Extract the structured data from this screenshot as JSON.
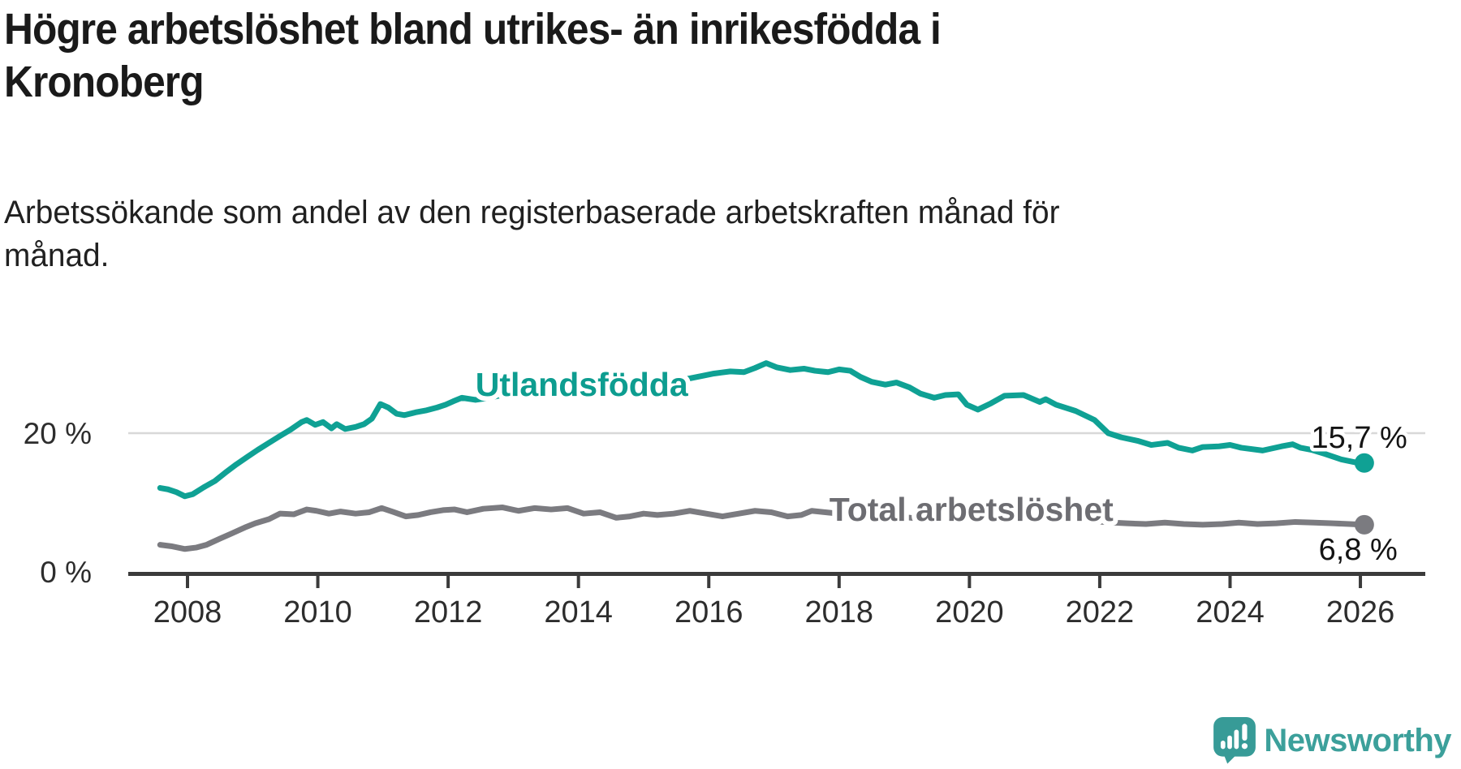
{
  "header": {
    "title_line1": "Högre arbetslöshet bland utrikes- än inrikesfödda i",
    "title_line2": "Kronoberg",
    "subtitle_line1": "Arbetssökande som andel av den registerbaserade arbetskraften månad för",
    "subtitle_line2": "månad."
  },
  "chart_data": {
    "type": "line",
    "title": "Högre arbetslöshet bland utrikes- än inrikesfödda i Kronoberg",
    "subtitle": "Arbetssökande som andel av den registerbaserade arbetskraften månad för månad.",
    "x_axis": {
      "tick_labels": [
        "2008",
        "2010",
        "2012",
        "2014",
        "2016",
        "2018",
        "2020",
        "2022",
        "2024",
        "2026"
      ]
    },
    "y_axis": {
      "ticks": [
        {
          "value": 20,
          "label": "20 %"
        },
        {
          "value": 0,
          "label": "0 %"
        }
      ],
      "range": [
        0,
        32
      ]
    },
    "grid_color": "#D8D8D8",
    "axis_color": "#3B3B3B",
    "tick_text_color": "#2D2D2D",
    "value_label_color": "#141414",
    "series": [
      {
        "name": "Utlandsfödda",
        "color": "#0FA194",
        "label_color": "#0D9D90",
        "end_label": "15,7 %",
        "end_value": 15.7,
        "label_anchor": {
          "year": 2014.05,
          "value": 27.0
        },
        "points": [
          [
            2007.58,
            12.1
          ],
          [
            2007.7,
            11.9
          ],
          [
            2007.83,
            11.5
          ],
          [
            2007.96,
            10.9
          ],
          [
            2008.08,
            11.2
          ],
          [
            2008.25,
            12.2
          ],
          [
            2008.42,
            13.1
          ],
          [
            2008.58,
            14.3
          ],
          [
            2008.75,
            15.5
          ],
          [
            2008.92,
            16.6
          ],
          [
            2009.08,
            17.6
          ],
          [
            2009.25,
            18.6
          ],
          [
            2009.42,
            19.6
          ],
          [
            2009.58,
            20.5
          ],
          [
            2009.75,
            21.6
          ],
          [
            2009.83,
            21.9
          ],
          [
            2009.96,
            21.2
          ],
          [
            2010.08,
            21.6
          ],
          [
            2010.21,
            20.7
          ],
          [
            2010.29,
            21.3
          ],
          [
            2010.42,
            20.6
          ],
          [
            2010.58,
            20.9
          ],
          [
            2010.71,
            21.3
          ],
          [
            2010.83,
            22.1
          ],
          [
            2010.96,
            24.2
          ],
          [
            2011.08,
            23.7
          ],
          [
            2011.21,
            22.8
          ],
          [
            2011.33,
            22.6
          ],
          [
            2011.5,
            23.0
          ],
          [
            2011.67,
            23.3
          ],
          [
            2011.83,
            23.7
          ],
          [
            2011.96,
            24.1
          ],
          [
            2012.08,
            24.6
          ],
          [
            2012.21,
            25.1
          ],
          [
            2012.42,
            24.8
          ],
          [
            2012.63,
            25.1
          ],
          [
            2012.83,
            25.5
          ],
          [
            2013.0,
            25.8
          ],
          [
            2013.21,
            26.2
          ],
          [
            2013.42,
            25.9
          ],
          [
            2013.63,
            26.1
          ],
          [
            2013.83,
            26.5
          ],
          [
            2014.04,
            26.8
          ],
          [
            2014.25,
            27.1
          ],
          [
            2014.46,
            26.8
          ],
          [
            2014.67,
            27.0
          ],
          [
            2014.88,
            27.3
          ],
          [
            2015.08,
            27.7
          ],
          [
            2015.29,
            27.9
          ],
          [
            2015.5,
            27.6
          ],
          [
            2015.71,
            27.9
          ],
          [
            2015.92,
            28.3
          ],
          [
            2016.08,
            28.6
          ],
          [
            2016.33,
            28.9
          ],
          [
            2016.54,
            28.8
          ],
          [
            2016.71,
            29.4
          ],
          [
            2016.88,
            30.1
          ],
          [
            2017.04,
            29.5
          ],
          [
            2017.25,
            29.1
          ],
          [
            2017.46,
            29.3
          ],
          [
            2017.63,
            29.0
          ],
          [
            2017.83,
            28.8
          ],
          [
            2018.0,
            29.2
          ],
          [
            2018.17,
            29.0
          ],
          [
            2018.33,
            28.1
          ],
          [
            2018.5,
            27.4
          ],
          [
            2018.71,
            27.0
          ],
          [
            2018.88,
            27.3
          ],
          [
            2019.08,
            26.6
          ],
          [
            2019.25,
            25.7
          ],
          [
            2019.46,
            25.1
          ],
          [
            2019.63,
            25.5
          ],
          [
            2019.83,
            25.6
          ],
          [
            2019.96,
            24.1
          ],
          [
            2020.13,
            23.4
          ],
          [
            2020.33,
            24.3
          ],
          [
            2020.54,
            25.4
          ],
          [
            2020.83,
            25.5
          ],
          [
            2021.08,
            24.5
          ],
          [
            2021.17,
            24.9
          ],
          [
            2021.33,
            24.1
          ],
          [
            2021.63,
            23.2
          ],
          [
            2021.92,
            21.9
          ],
          [
            2022.13,
            20.0
          ],
          [
            2022.33,
            19.4
          ],
          [
            2022.58,
            18.9
          ],
          [
            2022.79,
            18.3
          ],
          [
            2023.04,
            18.6
          ],
          [
            2023.21,
            17.9
          ],
          [
            2023.42,
            17.5
          ],
          [
            2023.58,
            18.0
          ],
          [
            2023.83,
            18.1
          ],
          [
            2024.0,
            18.3
          ],
          [
            2024.17,
            17.9
          ],
          [
            2024.5,
            17.5
          ],
          [
            2024.79,
            18.1
          ],
          [
            2024.96,
            18.4
          ],
          [
            2025.08,
            17.9
          ],
          [
            2025.25,
            17.6
          ],
          [
            2025.46,
            17.0
          ],
          [
            2025.71,
            16.2
          ],
          [
            2025.92,
            15.8
          ],
          [
            2026.06,
            15.7
          ]
        ]
      },
      {
        "name": "Total arbetslöshet",
        "color": "#7B7B80",
        "label_color": "#6D6D72",
        "end_label": "6,8 %",
        "end_value": 6.8,
        "label_anchor": {
          "year": 2020.03,
          "value": 9.0
        },
        "points": [
          [
            2007.58,
            3.9
          ],
          [
            2007.75,
            3.7
          ],
          [
            2007.96,
            3.3
          ],
          [
            2008.13,
            3.5
          ],
          [
            2008.29,
            3.9
          ],
          [
            2008.5,
            4.8
          ],
          [
            2008.67,
            5.5
          ],
          [
            2008.88,
            6.4
          ],
          [
            2009.04,
            7.0
          ],
          [
            2009.25,
            7.6
          ],
          [
            2009.42,
            8.4
          ],
          [
            2009.63,
            8.3
          ],
          [
            2009.83,
            9.0
          ],
          [
            2009.98,
            8.8
          ],
          [
            2010.17,
            8.4
          ],
          [
            2010.35,
            8.7
          ],
          [
            2010.58,
            8.4
          ],
          [
            2010.79,
            8.6
          ],
          [
            2010.98,
            9.2
          ],
          [
            2011.17,
            8.6
          ],
          [
            2011.35,
            8.0
          ],
          [
            2011.54,
            8.2
          ],
          [
            2011.73,
            8.6
          ],
          [
            2011.92,
            8.9
          ],
          [
            2012.1,
            9.0
          ],
          [
            2012.29,
            8.6
          ],
          [
            2012.54,
            9.1
          ],
          [
            2012.83,
            9.3
          ],
          [
            2013.08,
            8.8
          ],
          [
            2013.33,
            9.2
          ],
          [
            2013.58,
            9.0
          ],
          [
            2013.83,
            9.2
          ],
          [
            2014.08,
            8.4
          ],
          [
            2014.33,
            8.6
          ],
          [
            2014.58,
            7.8
          ],
          [
            2014.79,
            8.0
          ],
          [
            2015.0,
            8.4
          ],
          [
            2015.21,
            8.2
          ],
          [
            2015.46,
            8.4
          ],
          [
            2015.71,
            8.8
          ],
          [
            2015.96,
            8.4
          ],
          [
            2016.21,
            8.0
          ],
          [
            2016.46,
            8.4
          ],
          [
            2016.71,
            8.8
          ],
          [
            2016.96,
            8.6
          ],
          [
            2017.21,
            8.0
          ],
          [
            2017.42,
            8.2
          ],
          [
            2017.58,
            8.8
          ],
          [
            2017.79,
            8.6
          ],
          [
            2018.08,
            8.3
          ],
          [
            2018.42,
            8.0
          ],
          [
            2018.71,
            8.2
          ],
          [
            2019.0,
            7.9
          ],
          [
            2019.29,
            7.6
          ],
          [
            2019.58,
            7.8
          ],
          [
            2019.88,
            7.5
          ],
          [
            2020.17,
            8.2
          ],
          [
            2020.5,
            8.8
          ],
          [
            2020.79,
            8.7
          ],
          [
            2021.04,
            8.4
          ],
          [
            2021.33,
            8.0
          ],
          [
            2021.63,
            7.6
          ],
          [
            2021.92,
            7.3
          ],
          [
            2022.21,
            7.1
          ],
          [
            2022.42,
            7.0
          ],
          [
            2022.71,
            6.9
          ],
          [
            2023.0,
            7.1
          ],
          [
            2023.29,
            6.9
          ],
          [
            2023.58,
            6.8
          ],
          [
            2023.88,
            6.9
          ],
          [
            2024.13,
            7.1
          ],
          [
            2024.42,
            6.9
          ],
          [
            2024.71,
            7.0
          ],
          [
            2025.0,
            7.2
          ],
          [
            2025.29,
            7.1
          ],
          [
            2025.58,
            7.0
          ],
          [
            2025.83,
            6.9
          ],
          [
            2026.06,
            6.8
          ]
        ]
      }
    ]
  },
  "branding": {
    "logo_text": "Newsworthy",
    "logo_color": "#3CA09B"
  }
}
